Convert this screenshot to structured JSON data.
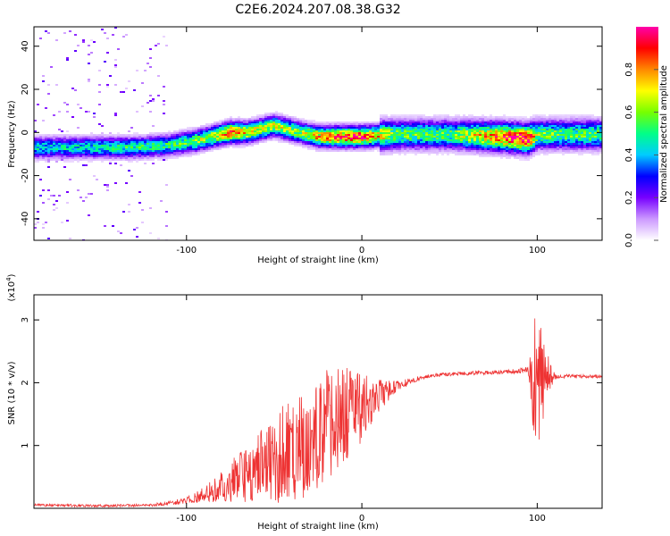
{
  "chart_data": [
    {
      "type": "heatmap",
      "title": "C2E6.2024.207.08.38.G32",
      "xlabel": "Height of straight line (km)",
      "ylabel": "Frequency (Hz)",
      "xlim": [
        -187,
        137
      ],
      "ylim": [
        -50,
        49
      ],
      "xticks": [
        -100,
        0,
        100
      ],
      "yticks": [
        -40,
        -20,
        0,
        20,
        40
      ],
      "colorbar": {
        "label": "Normalized spectral amplitude",
        "range": [
          0,
          1
        ],
        "ticks": [
          0.0,
          0.2,
          0.4,
          0.6,
          0.8
        ],
        "colors": [
          "#ffffff",
          "#cc99ff",
          "#7700ff",
          "#0000ff",
          "#00ccff",
          "#00ff88",
          "#77ff00",
          "#ffff00",
          "#ff8800",
          "#ff0000",
          "#ff00aa"
        ]
      },
      "ridge": {
        "x": [
          -187,
          -160,
          -130,
          -110,
          -95,
          -85,
          -75,
          -65,
          -50,
          -35,
          -25,
          -15,
          0,
          20,
          50,
          80,
          95,
          100,
          110,
          137
        ],
        "freq": [
          -7,
          -7,
          -7,
          -6,
          -4,
          -2,
          0,
          0,
          3,
          0,
          -2,
          -2,
          -2,
          -1,
          -1,
          -2,
          -3,
          -1,
          -1,
          -1
        ],
        "amplitude": [
          0.45,
          0.45,
          0.5,
          0.5,
          0.6,
          0.65,
          0.85,
          0.7,
          0.65,
          0.6,
          0.75,
          0.85,
          0.9,
          0.55,
          0.55,
          0.85,
          0.95,
          0.6,
          0.55,
          0.55
        ]
      }
    },
    {
      "type": "line",
      "ylabel": "SNR (10 * v/v)",
      "xlabel": "Height of straight line (km)",
      "y_multiplier": "(x10",
      "y_multiplier_exp": "4",
      "y_multiplier_close": ")",
      "xlim": [
        -187,
        137
      ],
      "ylim": [
        0,
        3.4
      ],
      "xticks": [
        -100,
        0,
        100
      ],
      "yticks": [
        1,
        2,
        3
      ],
      "series": [
        {
          "color": "#ee3333",
          "x": [
            -187,
            -150,
            -120,
            -100,
            -90,
            -80,
            -70,
            -60,
            -50,
            -40,
            -30,
            -20,
            -10,
            0,
            10,
            20,
            30,
            40,
            60,
            80,
            95,
            98,
            100,
            102,
            105,
            110,
            120,
            137
          ],
          "y": [
            0.05,
            0.04,
            0.05,
            0.12,
            0.22,
            0.35,
            0.5,
            0.62,
            0.78,
            0.95,
            1.1,
            1.25,
            1.45,
            1.6,
            1.8,
            1.95,
            2.05,
            2.12,
            2.15,
            2.17,
            2.2,
            2.1,
            2.1,
            2.1,
            2.12,
            2.1,
            2.1,
            2.1
          ],
          "amplitude": [
            0.02,
            0.02,
            0.02,
            0.05,
            0.12,
            0.25,
            0.4,
            0.55,
            0.7,
            0.85,
            0.9,
            0.95,
            0.8,
            0.55,
            0.25,
            0.08,
            0.04,
            0.03,
            0.03,
            0.03,
            0.05,
            1.1,
            1.3,
            1.0,
            0.4,
            0.05,
            0.03,
            0.03
          ]
        }
      ]
    }
  ]
}
